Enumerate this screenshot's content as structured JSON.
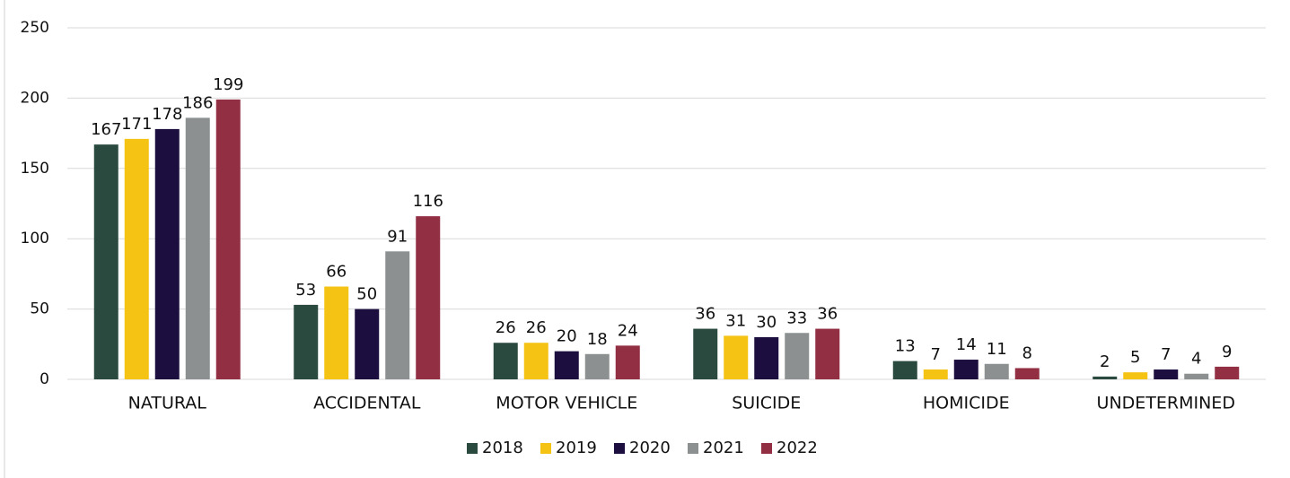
{
  "chart_data": {
    "type": "bar",
    "categories": [
      "NATURAL",
      "ACCIDENTAL",
      "MOTOR VEHICLE",
      "SUICIDE",
      "HOMICIDE",
      "UNDETERMINED"
    ],
    "series": [
      {
        "name": "2018",
        "color": "#2b4a3f",
        "values": [
          167,
          53,
          26,
          36,
          13,
          2
        ]
      },
      {
        "name": "2019",
        "color": "#f5c314",
        "values": [
          171,
          66,
          26,
          31,
          7,
          5
        ]
      },
      {
        "name": "2020",
        "color": "#1c0e3f",
        "values": [
          178,
          50,
          20,
          30,
          14,
          7
        ]
      },
      {
        "name": "2021",
        "color": "#8c9090",
        "values": [
          186,
          91,
          18,
          33,
          11,
          4
        ]
      },
      {
        "name": "2022",
        "color": "#922f42",
        "values": [
          199,
          116,
          24,
          36,
          8,
          9
        ]
      }
    ],
    "ylim": [
      0,
      250
    ],
    "yticks": [
      0,
      50,
      100,
      150,
      200,
      250
    ],
    "grid": true,
    "legend": "bottom"
  }
}
